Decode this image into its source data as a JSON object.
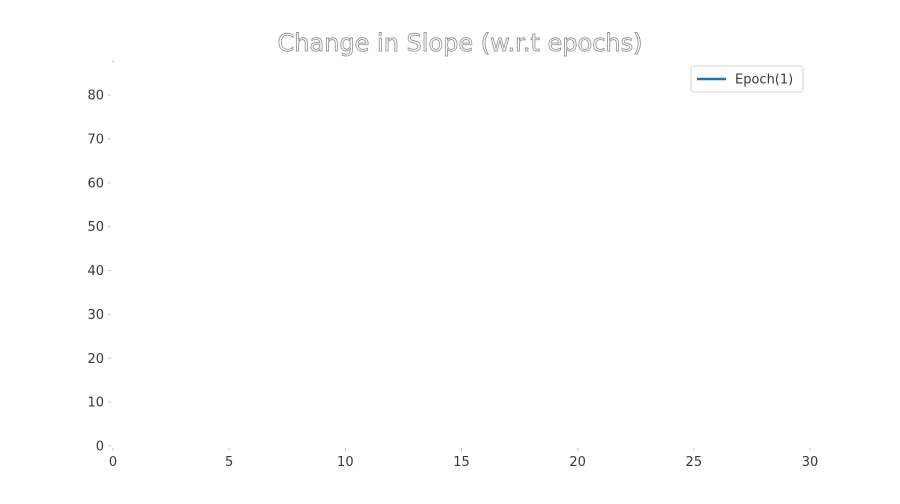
{
  "chart_data": {
    "type": "line",
    "title": "Change in Slope (w.r.t epochs)",
    "xlabel": "",
    "ylabel": "",
    "xlim": [
      0,
      30
    ],
    "ylim": [
      0,
      88
    ],
    "x_ticks": [
      0,
      5,
      10,
      15,
      20,
      25,
      30
    ],
    "y_ticks": [
      0,
      10,
      20,
      30,
      40,
      50,
      60,
      70,
      80
    ],
    "grid": false,
    "legend_position": "top-right",
    "series": [
      {
        "name": "Epoch(1)",
        "color": "#1f77b4",
        "x": [],
        "y": []
      }
    ]
  }
}
